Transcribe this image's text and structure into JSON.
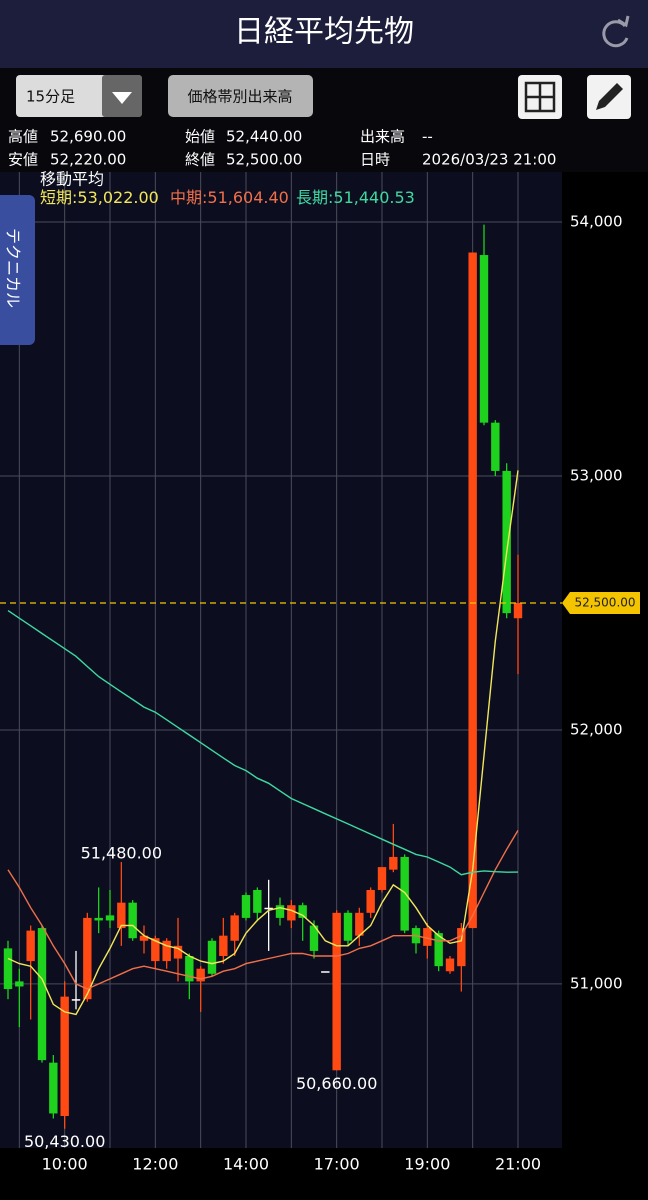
{
  "header": {
    "title": "日経平均先物"
  },
  "toolbar": {
    "interval": "15分足",
    "volume_profile": "価格帯別出来高"
  },
  "info": {
    "high": {
      "label": "高値",
      "value": "52,690.00"
    },
    "open": {
      "label": "始値",
      "value": "52,440.00"
    },
    "volume": {
      "label": "出来高",
      "value": "--"
    },
    "low": {
      "label": "安値",
      "value": "52,220.00"
    },
    "close": {
      "label": "終値",
      "value": "52,500.00"
    },
    "datetime": {
      "label": "日時",
      "value": "2026/03/23 21:00"
    }
  },
  "side_tab": "テクニカル",
  "chart_data": {
    "type": "candlestick",
    "categories": [
      null,
      null,
      null,
      null,
      null,
      "10:00",
      null,
      null,
      null,
      null,
      null,
      null,
      null,
      "12:00",
      null,
      null,
      null,
      null,
      null,
      null,
      null,
      "14:00",
      null,
      null,
      null,
      null,
      null,
      null,
      null,
      "17:00",
      null,
      null,
      null,
      null,
      null,
      null,
      null,
      "19:00",
      null,
      null,
      null,
      null,
      null,
      null,
      null,
      "21:00"
    ],
    "open": [
      51140,
      51010,
      51090,
      51220,
      50690,
      50480,
      50940,
      50940,
      51260,
      51270,
      51220,
      51320,
      51170,
      51090,
      51090,
      51100,
      51110,
      51010,
      51170,
      51110,
      51170,
      51350,
      51370,
      51300,
      51310,
      51250,
      51310,
      51230,
      51050,
      50660,
      51280,
      51190,
      51280,
      51370,
      51450,
      51500,
      51220,
      51150,
      51200,
      51050,
      51070,
      51220,
      53870,
      53210,
      53020,
      52440
    ],
    "high": [
      51170,
      51060,
      51230,
      51230,
      50720,
      51010,
      51130,
      51280,
      51380,
      51370,
      51480,
      51330,
      51230,
      51190,
      51180,
      51260,
      51120,
      51070,
      51180,
      51260,
      51280,
      51360,
      51380,
      51410,
      51340,
      51330,
      51320,
      51250,
      51050,
      51290,
      51290,
      51300,
      51380,
      51460,
      51630,
      51510,
      51230,
      51240,
      51210,
      51110,
      51240,
      53880,
      53990,
      53220,
      53050,
      52690
    ],
    "low": [
      50940,
      50830,
      50860,
      50690,
      50470,
      50430,
      50900,
      50930,
      51200,
      51220,
      51150,
      51170,
      51120,
      51060,
      51060,
      51010,
      50940,
      50890,
      51030,
      51080,
      51110,
      51250,
      51250,
      51130,
      51230,
      51220,
      51170,
      51100,
      51050,
      50660,
      51150,
      51150,
      51260,
      51360,
      51440,
      51200,
      51120,
      51100,
      51050,
      51040,
      50970,
      51220,
      53200,
      53000,
      52440,
      52220
    ],
    "close": [
      50980,
      50990,
      51210,
      50700,
      50490,
      50950,
      50940,
      51260,
      51250,
      51250,
      51320,
      51180,
      51190,
      51180,
      51170,
      51150,
      51010,
      51060,
      51040,
      51190,
      51270,
      51260,
      51280,
      51300,
      51260,
      51310,
      51260,
      51130,
      51050,
      51280,
      51170,
      51280,
      51370,
      51460,
      51500,
      51210,
      51160,
      51220,
      51070,
      51100,
      51220,
      53880,
      53210,
      53020,
      52460,
      52500
    ],
    "high_labels": [
      null,
      null,
      null,
      null,
      null,
      null,
      null,
      null,
      null,
      null,
      "51,480.00",
      null,
      null,
      null,
      null,
      null,
      null,
      null,
      null,
      null,
      null,
      null,
      null,
      null,
      null,
      null,
      null,
      null,
      null,
      null,
      null,
      null,
      null,
      null,
      null,
      null,
      null,
      null,
      null,
      null,
      null,
      null,
      null,
      null,
      null,
      null
    ],
    "low_labels": [
      null,
      null,
      null,
      null,
      null,
      "50,430.00",
      null,
      null,
      null,
      null,
      null,
      null,
      null,
      null,
      null,
      null,
      null,
      null,
      null,
      null,
      null,
      null,
      null,
      null,
      null,
      null,
      null,
      null,
      null,
      "50,660.00",
      null,
      null,
      null,
      null,
      null,
      null,
      null,
      null,
      null,
      null,
      null,
      null,
      null,
      null,
      null,
      null
    ],
    "up_color": "#ff4a14",
    "down_color": "#1ed21e",
    "flat_color": "#ffffff",
    "ma_title": "移動平均",
    "separator": ":",
    "series": [
      {
        "name": "短期",
        "color": "#f2e65a",
        "values": [
          51100,
          51080,
          51070,
          51020,
          50920,
          50890,
          50880,
          50960,
          51060,
          51140,
          51230,
          51230,
          51190,
          51170,
          51150,
          51140,
          51110,
          51090,
          51080,
          51090,
          51120,
          51200,
          51250,
          51290,
          51300,
          51290,
          51270,
          51230,
          51170,
          51150,
          51150,
          51190,
          51230,
          51320,
          51390,
          51360,
          51300,
          51230,
          51190,
          51160,
          51170,
          51450,
          51900,
          52350,
          52700,
          53022
        ],
        "value_labels": [
          null,
          null,
          null,
          null,
          null,
          null,
          null,
          null,
          null,
          null,
          null,
          null,
          null,
          null,
          null,
          null,
          null,
          null,
          null,
          null,
          null,
          null,
          null,
          null,
          null,
          null,
          null,
          null,
          null,
          null,
          null,
          null,
          null,
          null,
          null,
          null,
          null,
          null,
          null,
          null,
          null,
          null,
          null,
          null,
          null,
          "53,022.00"
        ]
      },
      {
        "name": "中期",
        "color": "#f0704a",
        "values": [
          51450,
          51380,
          51300,
          51230,
          51150,
          51080,
          51000,
          50980,
          51000,
          51020,
          51040,
          51060,
          51070,
          51060,
          51050,
          51040,
          51030,
          51020,
          51030,
          51050,
          51060,
          51080,
          51090,
          51100,
          51110,
          51120,
          51120,
          51110,
          51110,
          51110,
          51120,
          51140,
          51150,
          51170,
          51190,
          51190,
          51190,
          51180,
          51170,
          51170,
          51190,
          51270,
          51360,
          51450,
          51530,
          51604.4
        ],
        "value_labels": [
          null,
          null,
          null,
          null,
          null,
          null,
          null,
          null,
          null,
          null,
          null,
          null,
          null,
          null,
          null,
          null,
          null,
          null,
          null,
          null,
          null,
          null,
          null,
          null,
          null,
          null,
          null,
          null,
          null,
          null,
          null,
          null,
          null,
          null,
          null,
          null,
          null,
          null,
          null,
          null,
          null,
          null,
          null,
          null,
          null,
          "51,604.40"
        ]
      },
      {
        "name": "長期",
        "color": "#3ed9a0",
        "values": [
          52470,
          52440,
          52410,
          52380,
          52350,
          52320,
          52290,
          52250,
          52210,
          52180,
          52150,
          52120,
          52090,
          52070,
          52040,
          52010,
          51980,
          51950,
          51920,
          51890,
          51860,
          51840,
          51810,
          51790,
          51760,
          51730,
          51710,
          51690,
          51670,
          51650,
          51630,
          51610,
          51590,
          51570,
          51550,
          51530,
          51510,
          51500,
          51480,
          51460,
          51430,
          51440,
          51445,
          51442,
          51440,
          51440.53
        ],
        "value_labels": [
          null,
          null,
          null,
          null,
          null,
          null,
          null,
          null,
          null,
          null,
          null,
          null,
          null,
          null,
          null,
          null,
          null,
          null,
          null,
          null,
          null,
          null,
          null,
          null,
          null,
          null,
          null,
          null,
          null,
          null,
          null,
          null,
          null,
          null,
          null,
          null,
          null,
          null,
          null,
          null,
          null,
          null,
          null,
          null,
          null,
          "51,440.53"
        ]
      }
    ],
    "ylim": [
      50354,
      54197
    ],
    "yticks": [
      {
        "value": 51000,
        "label": "51,000"
      },
      {
        "value": 52000,
        "label": "52,000"
      },
      {
        "value": 53000,
        "label": "53,000"
      },
      {
        "value": 54000,
        "label": "54,000"
      }
    ],
    "grid": true,
    "current": {
      "value": 52500,
      "label": "52,500.00"
    },
    "current_color": "#f5c400"
  }
}
